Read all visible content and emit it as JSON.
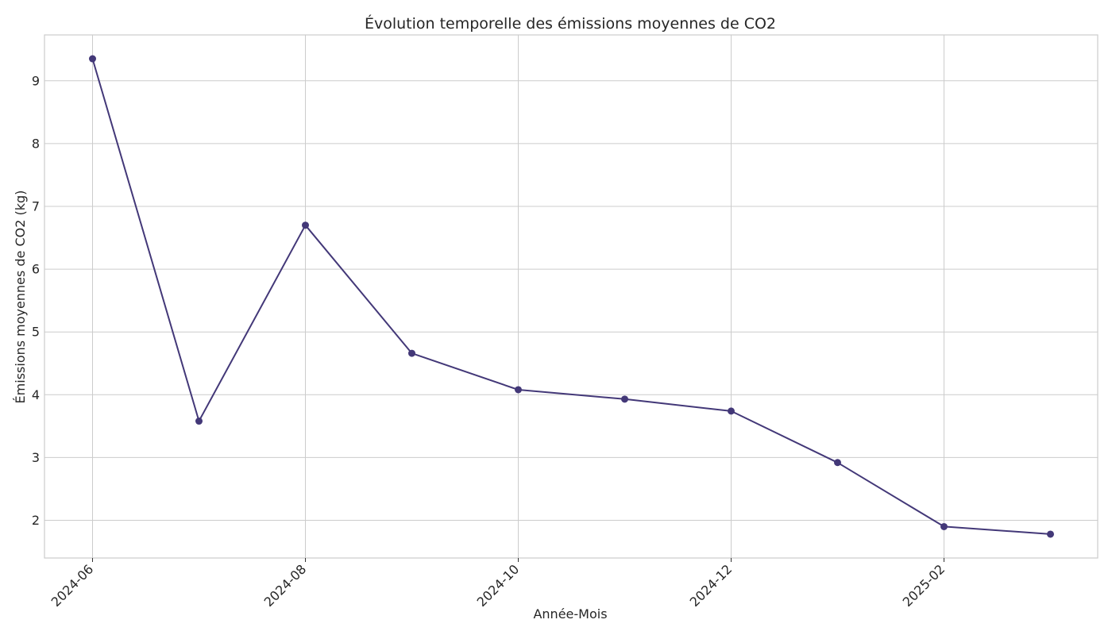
{
  "chart_data": {
    "type": "line",
    "title": "Évolution temporelle des émissions moyennes de CO2",
    "xlabel": "Année-Mois",
    "ylabel": "Émissions moyennes de CO2 (kg)",
    "x": [
      "2024-06",
      "2024-07",
      "2024-08",
      "2024-09",
      "2024-10",
      "2024-11",
      "2024-12",
      "2025-01",
      "2025-02",
      "2025-03"
    ],
    "xticks": [
      "2024-06",
      "2024-08",
      "2024-10",
      "2024-12",
      "2025-02"
    ],
    "yticks": [
      2,
      3,
      4,
      5,
      6,
      7,
      8,
      9
    ],
    "ylim": [
      1.4,
      9.73
    ],
    "grid": true,
    "series": [
      {
        "values": [
          9.35,
          3.58,
          6.7,
          4.66,
          4.08,
          3.93,
          3.74,
          2.92,
          1.9,
          1.78
        ],
        "color": "#433878"
      }
    ]
  }
}
